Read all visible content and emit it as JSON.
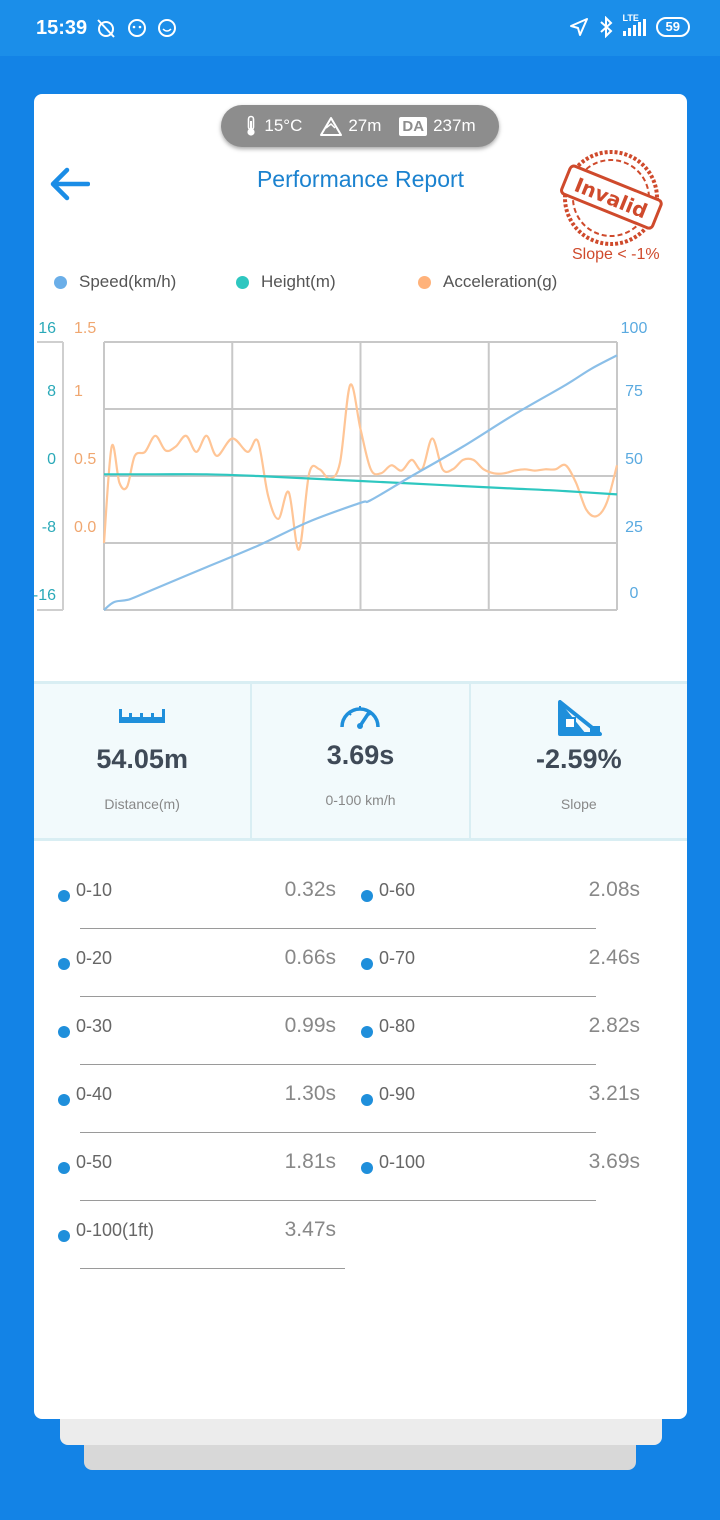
{
  "statusbar": {
    "time": "15:39",
    "lte": "LTE",
    "battery": "59"
  },
  "conditions": {
    "temperature": "15°C",
    "altitude": "27m",
    "da_label": "DA",
    "density_altitude": "237m"
  },
  "header": {
    "title": "Performance Report"
  },
  "stamp": {
    "text": "Invalid",
    "note": "Slope < -1%",
    "color": "#cf4a2c"
  },
  "legend": [
    {
      "label": "Speed(km/h)",
      "color": "#6aaee8"
    },
    {
      "label": "Height(m)",
      "color": "#2ec7c0"
    },
    {
      "label": "Acceleration(g)",
      "color": "#ffb27a"
    }
  ],
  "chart_data": {
    "type": "line",
    "height_axis": {
      "ticks": [
        "16",
        "8",
        "0",
        "-8",
        "-16"
      ],
      "range": [
        -16,
        16
      ],
      "color": "#2aa9b8"
    },
    "accel_axis": {
      "ticks": [
        "1.5",
        "1",
        "0.5",
        "0.0"
      ],
      "range": [
        -0.5,
        1.5
      ],
      "color": "#f0a770"
    },
    "speed_axis": {
      "ticks": [
        "100",
        "75",
        "50",
        "25",
        "0"
      ],
      "range": [
        -5,
        95
      ],
      "color": "#5aaae0"
    },
    "grid": true,
    "series": [
      {
        "name": "Speed(km/h)",
        "axis": "speed",
        "color": "#8bbfe8",
        "x": [
          0,
          0.02,
          0.05,
          0.1,
          0.2,
          0.3,
          0.4,
          0.5,
          0.52,
          0.6,
          0.7,
          0.8,
          0.9,
          0.95,
          1.0
        ],
        "y": [
          -5,
          -2,
          -1,
          3,
          11,
          19,
          28,
          35,
          36,
          45,
          56,
          68,
          79,
          85,
          90
        ]
      },
      {
        "name": "Height(m)",
        "axis": "height",
        "color": "#2ec7c0",
        "x": [
          0,
          0.1,
          0.2,
          0.3,
          0.4,
          0.5,
          0.6,
          0.7,
          0.8,
          0.9,
          1.0
        ],
        "y": [
          0.2,
          0.2,
          0.2,
          0,
          -0.3,
          -0.6,
          -0.9,
          -1.2,
          -1.5,
          -1.8,
          -2.2
        ]
      },
      {
        "name": "Acceleration(g)",
        "axis": "accel",
        "color": "#ffc596",
        "x": [
          0,
          0.015,
          0.03,
          0.045,
          0.06,
          0.08,
          0.1,
          0.12,
          0.14,
          0.16,
          0.18,
          0.2,
          0.22,
          0.25,
          0.28,
          0.3,
          0.32,
          0.34,
          0.36,
          0.38,
          0.4,
          0.42,
          0.44,
          0.46,
          0.48,
          0.5,
          0.52,
          0.54,
          0.56,
          0.58,
          0.6,
          0.62,
          0.64,
          0.66,
          0.68,
          0.7,
          0.72,
          0.74,
          0.76,
          0.78,
          0.8,
          0.82,
          0.84,
          0.86,
          0.88,
          0.9,
          0.92,
          0.94,
          0.96,
          0.98,
          1.0
        ],
        "y": [
          0.0,
          0.72,
          0.45,
          0.42,
          0.65,
          0.68,
          0.8,
          0.69,
          0.72,
          0.8,
          0.68,
          0.8,
          0.65,
          0.78,
          0.68,
          0.76,
          0.35,
          0.18,
          0.38,
          -0.05,
          0.52,
          0.55,
          0.48,
          0.6,
          1.18,
          0.85,
          0.55,
          0.52,
          0.58,
          0.54,
          0.62,
          0.55,
          0.78,
          0.55,
          0.55,
          0.62,
          0.62,
          0.55,
          0.52,
          0.52,
          0.54,
          0.55,
          0.54,
          0.55,
          0.55,
          0.58,
          0.45,
          0.25,
          0.2,
          0.3,
          0.58
        ]
      }
    ]
  },
  "metrics": [
    {
      "icon": "ruler-icon",
      "value": "54.05m",
      "label": "Distance(m)"
    },
    {
      "icon": "speedometer-icon",
      "value": "3.69s",
      "label": "0-100 km/h"
    },
    {
      "icon": "slope-icon",
      "value": "-2.59%",
      "label": "Slope"
    }
  ],
  "times": {
    "left": [
      {
        "label": "0-10",
        "value": "0.32s"
      },
      {
        "label": "0-20",
        "value": "0.66s"
      },
      {
        "label": "0-30",
        "value": "0.99s"
      },
      {
        "label": "0-40",
        "value": "1.30s"
      },
      {
        "label": "0-50",
        "value": "1.81s"
      },
      {
        "label": "0-100(1ft)",
        "value": "3.47s"
      }
    ],
    "right": [
      {
        "label": "0-60",
        "value": "2.08s"
      },
      {
        "label": "0-70",
        "value": "2.46s"
      },
      {
        "label": "0-80",
        "value": "2.82s"
      },
      {
        "label": "0-90",
        "value": "3.21s"
      },
      {
        "label": "0-100",
        "value": "3.69s"
      }
    ]
  }
}
